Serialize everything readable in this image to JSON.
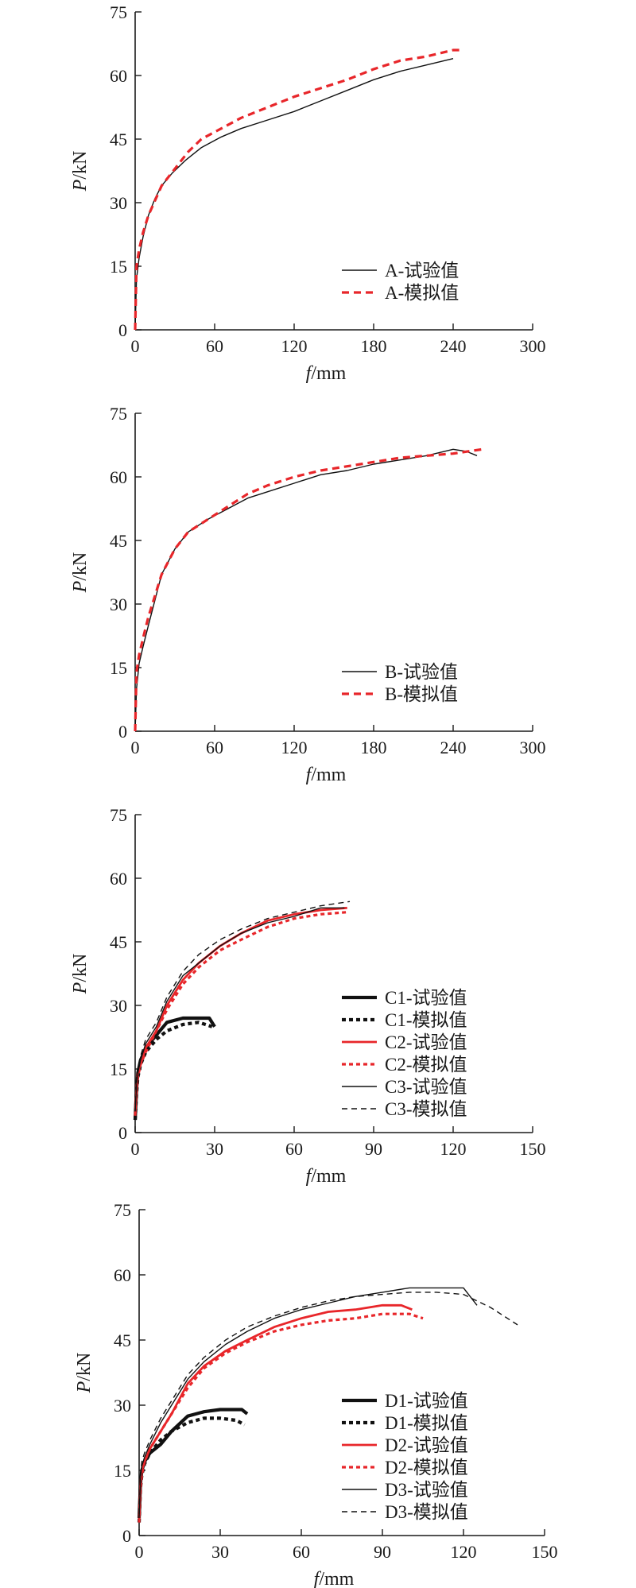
{
  "chart_data": [
    {
      "type": "line",
      "xlabel_italic": "f",
      "xlabel_unit": "/mm",
      "ylabel_italic": "P",
      "ylabel_unit": "/kN",
      "xlim": [
        0,
        300
      ],
      "ylim": [
        0,
        75
      ],
      "xticks": [
        0,
        60,
        120,
        180,
        240,
        300
      ],
      "yticks": [
        0,
        15,
        30,
        45,
        60,
        75
      ],
      "legend_position": "bottom-right",
      "series": [
        {
          "name": "A-试验值",
          "color": "#111111",
          "dash": "solid",
          "width": 1.4,
          "x": [
            0,
            1,
            3,
            6,
            10,
            15,
            20,
            28,
            38,
            50,
            65,
            80,
            100,
            120,
            140,
            160,
            180,
            200,
            220,
            240
          ],
          "y": [
            0,
            12,
            17,
            22,
            27,
            31,
            34,
            37,
            40,
            43,
            45.5,
            47.5,
            49.5,
            51.5,
            54,
            56.5,
            59,
            61,
            62.5,
            64
          ]
        },
        {
          "name": "A-模拟值",
          "color": "#e8262a",
          "dash": "dashed",
          "width": 3.2,
          "x": [
            0,
            1,
            3,
            6,
            10,
            15,
            20,
            30,
            40,
            50,
            65,
            80,
            100,
            120,
            140,
            160,
            180,
            200,
            220,
            240,
            246
          ],
          "y": [
            0,
            15,
            19,
            23,
            27,
            30.5,
            34,
            38,
            42,
            45,
            47.5,
            50,
            52.5,
            55,
            57,
            59,
            61.5,
            63.5,
            64.5,
            66,
            66
          ]
        }
      ]
    },
    {
      "type": "line",
      "xlabel_italic": "f",
      "xlabel_unit": "/mm",
      "ylabel_italic": "P",
      "ylabel_unit": "/kN",
      "xlim": [
        0,
        300
      ],
      "ylim": [
        0,
        75
      ],
      "xticks": [
        0,
        60,
        120,
        180,
        240,
        300
      ],
      "yticks": [
        0,
        15,
        30,
        45,
        60,
        75
      ],
      "legend_position": "bottom-right",
      "series": [
        {
          "name": "B-试验值",
          "color": "#111111",
          "dash": "solid",
          "width": 1.4,
          "x": [
            0,
            1,
            3,
            6,
            10,
            15,
            20,
            30,
            40,
            55,
            70,
            85,
            100,
            120,
            140,
            160,
            180,
            200,
            220,
            240,
            250,
            258
          ],
          "y": [
            0,
            10,
            16,
            20,
            25,
            31,
            37,
            43,
            47,
            50,
            52.5,
            55,
            56.5,
            58.5,
            60.5,
            61.5,
            63,
            64,
            65,
            66.5,
            66,
            65
          ]
        },
        {
          "name": "B-模拟值",
          "color": "#e8262a",
          "dash": "dashed",
          "width": 3.2,
          "x": [
            0,
            1,
            3,
            6,
            10,
            15,
            20,
            30,
            40,
            55,
            70,
            85,
            100,
            120,
            140,
            160,
            180,
            200,
            220,
            240,
            262
          ],
          "y": [
            0,
            14,
            18,
            22,
            27,
            32,
            37,
            43,
            47,
            50,
            53,
            56,
            58,
            60,
            61.5,
            62.5,
            63.5,
            64.5,
            65,
            65.5,
            66.5
          ]
        }
      ]
    },
    {
      "type": "line",
      "xlabel_italic": "f",
      "xlabel_unit": "/mm",
      "ylabel_italic": "P",
      "ylabel_unit": "/kN",
      "xlim": [
        0,
        150
      ],
      "ylim": [
        0,
        75
      ],
      "xticks": [
        0,
        30,
        60,
        90,
        120,
        150
      ],
      "yticks": [
        0,
        15,
        30,
        45,
        60,
        75
      ],
      "legend_position": "bottom-right",
      "series": [
        {
          "name": "C1-试验值",
          "color": "#111111",
          "dash": "solid",
          "width": 4.2,
          "x": [
            0,
            0.5,
            1,
            2,
            4,
            8,
            12,
            18,
            24,
            28,
            30
          ],
          "y": [
            3,
            10,
            14,
            17,
            20,
            23,
            26,
            27,
            27,
            27,
            25
          ]
        },
        {
          "name": "C1-模拟值",
          "color": "#111111",
          "dash": "dotted-bold",
          "width": 4.2,
          "x": [
            0,
            0.5,
            1,
            2,
            4,
            8,
            12,
            18,
            24,
            29
          ],
          "y": [
            3,
            9,
            13,
            16,
            19,
            22,
            24,
            25.5,
            26,
            25
          ]
        },
        {
          "name": "C2-试验值",
          "color": "#e8262a",
          "dash": "solid",
          "width": 2.8,
          "x": [
            0,
            0.5,
            1,
            2,
            4,
            8,
            12,
            18,
            24,
            32,
            40,
            50,
            60,
            70,
            80
          ],
          "y": [
            4,
            10,
            14,
            16,
            20,
            24,
            30,
            36,
            40,
            44,
            47,
            50,
            51.5,
            52.5,
            53
          ]
        },
        {
          "name": "C2-模拟值",
          "color": "#e8262a",
          "dash": "dotted-bold",
          "width": 3.2,
          "x": [
            0,
            0.5,
            1,
            2,
            4,
            8,
            12,
            18,
            24,
            32,
            40,
            50,
            60,
            70,
            80
          ],
          "y": [
            4,
            10,
            13,
            16,
            19,
            24,
            29,
            35,
            39,
            43,
            45.5,
            48.5,
            50.5,
            51.5,
            52
          ]
        },
        {
          "name": "C3-试验值",
          "color": "#111111",
          "dash": "solid",
          "width": 1.4,
          "x": [
            0,
            0.5,
            1,
            2,
            4,
            8,
            12,
            18,
            24,
            32,
            40,
            50,
            60,
            70,
            79
          ],
          "y": [
            5,
            11,
            14,
            17,
            21,
            25,
            31,
            37,
            40,
            44,
            47,
            49.5,
            51,
            53,
            53
          ]
        },
        {
          "name": "C3-模拟值",
          "color": "#111111",
          "dash": "dashed-thin",
          "width": 1.4,
          "x": [
            0,
            0.5,
            1,
            2,
            4,
            8,
            12,
            18,
            24,
            32,
            40,
            50,
            60,
            70,
            81
          ],
          "y": [
            5,
            12,
            15,
            18,
            22,
            26,
            32,
            38,
            42,
            45.5,
            48,
            50.5,
            52,
            53.5,
            54.5
          ]
        }
      ]
    },
    {
      "type": "line",
      "xlabel_italic": "f",
      "xlabel_unit": "/mm",
      "ylabel_italic": "P",
      "ylabel_unit": "/kN",
      "xlim": [
        0,
        150
      ],
      "ylim": [
        0,
        75
      ],
      "xticks": [
        0,
        30,
        60,
        90,
        120,
        150
      ],
      "yticks": [
        0,
        15,
        30,
        45,
        60,
        75
      ],
      "legend_position": "bottom-right",
      "series": [
        {
          "name": "D1-试验值",
          "color": "#111111",
          "dash": "solid",
          "width": 4.2,
          "x": [
            0,
            0.5,
            1,
            2,
            4,
            8,
            12,
            18,
            24,
            30,
            38,
            40
          ],
          "y": [
            4,
            12,
            15,
            17,
            19,
            21,
            24,
            27.5,
            28.5,
            29,
            29,
            28
          ]
        },
        {
          "name": "D1-模拟值",
          "color": "#111111",
          "dash": "dotted-bold",
          "width": 4.2,
          "x": [
            0,
            0.5,
            1,
            2,
            4,
            8,
            12,
            18,
            24,
            30,
            36,
            39
          ],
          "y": [
            3,
            11,
            14,
            16.5,
            19,
            22,
            24,
            26,
            27,
            27,
            26.5,
            25.5
          ]
        },
        {
          "name": "D2-试验值",
          "color": "#e8262a",
          "dash": "solid",
          "width": 2.8,
          "x": [
            0,
            0.5,
            1,
            2,
            4,
            8,
            12,
            18,
            24,
            32,
            40,
            50,
            60,
            70,
            80,
            90,
            97,
            101
          ],
          "y": [
            3,
            12,
            15,
            17,
            20,
            24,
            28,
            35,
            39,
            42.5,
            45,
            48,
            50,
            51.5,
            52,
            53,
            53,
            52
          ]
        },
        {
          "name": "D2-模拟值",
          "color": "#e8262a",
          "dash": "dotted-bold",
          "width": 3.2,
          "x": [
            0,
            0.5,
            1,
            2,
            4,
            8,
            12,
            18,
            24,
            32,
            40,
            50,
            60,
            70,
            80,
            90,
            100,
            105
          ],
          "y": [
            3,
            11,
            14,
            17,
            20,
            24,
            28,
            34,
            38.5,
            42,
            44.5,
            47,
            48.5,
            49.5,
            50,
            51,
            51,
            50
          ]
        },
        {
          "name": "D3-试验值",
          "color": "#111111",
          "dash": "solid",
          "width": 1.4,
          "x": [
            0,
            0.5,
            1,
            2,
            4,
            8,
            12,
            18,
            24,
            32,
            40,
            50,
            60,
            70,
            80,
            90,
            100,
            110,
            120,
            125
          ],
          "y": [
            4,
            13,
            16,
            18,
            21,
            26,
            30,
            36,
            40,
            44,
            47,
            50,
            52,
            53.5,
            55,
            56,
            57,
            57,
            57,
            53
          ]
        },
        {
          "name": "D3-模拟值",
          "color": "#111111",
          "dash": "dashed-thin",
          "width": 1.4,
          "x": [
            0,
            0.5,
            1,
            2,
            4,
            8,
            12,
            18,
            24,
            32,
            40,
            50,
            60,
            70,
            80,
            90,
            100,
            110,
            120,
            130,
            140
          ],
          "y": [
            5,
            14,
            17,
            19,
            22,
            27,
            31,
            37,
            41,
            45,
            48,
            50.5,
            52.5,
            54,
            55,
            55.5,
            56,
            56,
            55.5,
            52.5,
            48.5
          ]
        }
      ]
    }
  ]
}
